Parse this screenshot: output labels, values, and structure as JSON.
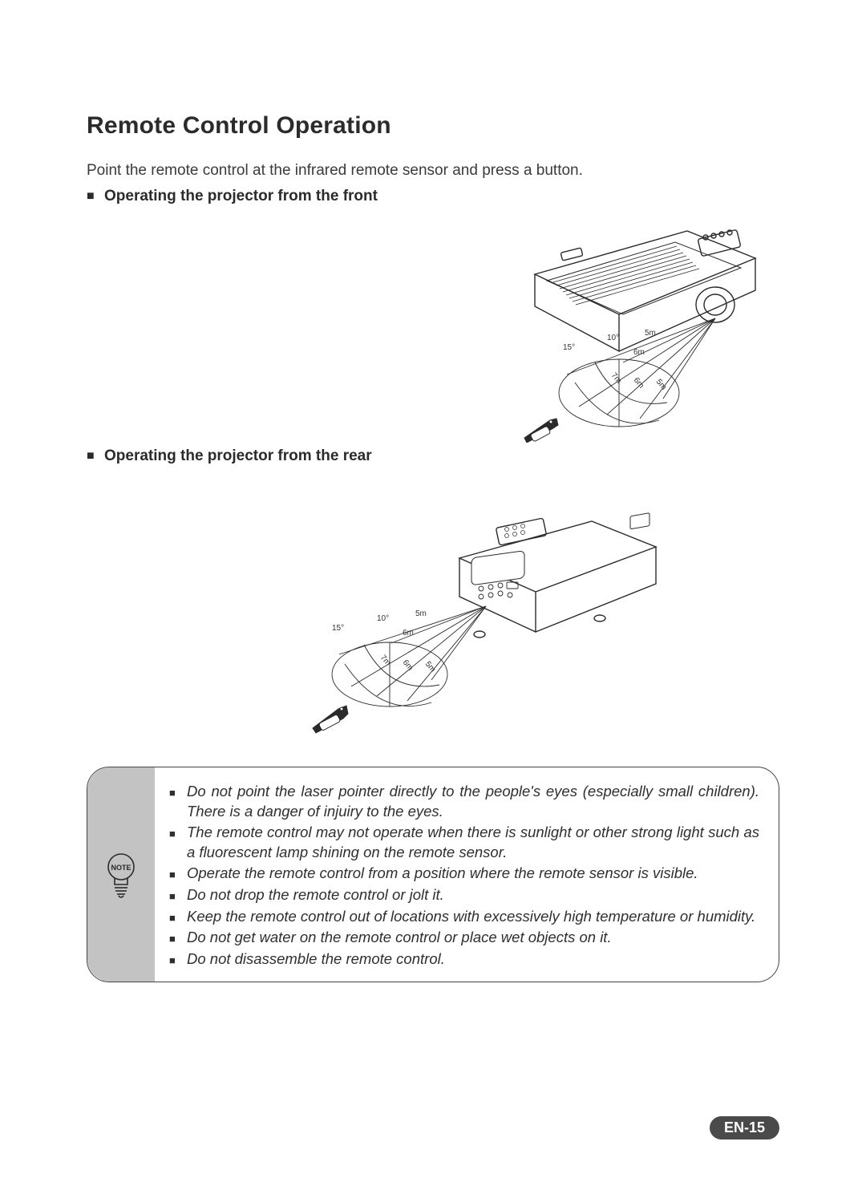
{
  "title": "Remote Control Operation",
  "intro": "Point the remote control at the infrared remote sensor and press a button.",
  "subhead_front": "Operating the projector from the front",
  "subhead_rear": "Operating the projector from the rear",
  "page_number": "EN-15",
  "note_label": "NOTE",
  "diagram_labels": {
    "deg15": "15°",
    "deg10": "10°",
    "d5m": "5m",
    "d6m": "6m",
    "d7m": "7m"
  },
  "colors": {
    "text": "#3a3a3a",
    "heading": "#2b2b2b",
    "rule": "#444444",
    "note_bg": "#c3c3c3",
    "page_bg": "#ffffff",
    "badge_bg": "#4a4a4a",
    "badge_text": "#ffffff"
  },
  "typography": {
    "title_pt": 30,
    "body_pt": 19,
    "note_pt": 18.5,
    "tiny_pt": 10
  },
  "notes": [
    "Do not point the laser pointer directly to the people's eyes (especially small children). There is a danger of injuiry to the eyes.",
    "The remote control may not operate when there is sunlight or other strong light such as a fluorescent lamp shining on the remote sensor.",
    "Operate the remote control from a position where the remote sensor is visible.",
    "Do not drop the remote control or jolt it.",
    "Keep the remote control out of locations with excessively high temperature or humidity.",
    "Do not get water on the remote control or place wet objects on it.",
    "Do not disassemble the remote control."
  ]
}
